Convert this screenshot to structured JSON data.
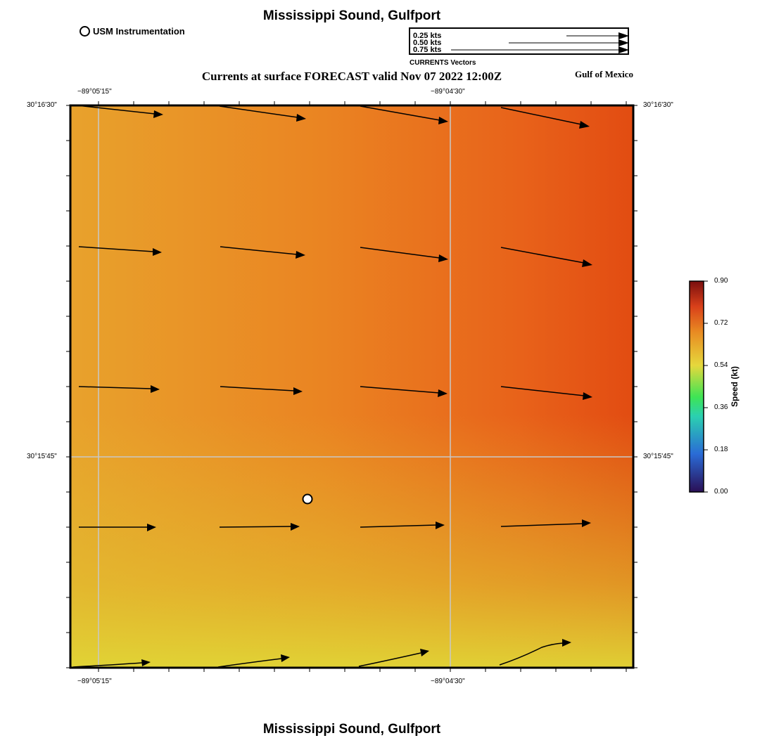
{
  "title": "Mississippi Sound, Gulfport",
  "subtitle": "Currents at surface FORECAST valid Nov 07 2022 12:00Z",
  "region_label": "Gulf of Mexico",
  "station_legend": {
    "label": "USM Instrumentation",
    "icon": "open-circle-icon"
  },
  "vector_legend": {
    "caption": "CURRENTS Vectors",
    "entries": [
      {
        "label": "0.25 kts",
        "speed_kt": 0.25
      },
      {
        "label": "0.50 kts",
        "speed_kt": 0.5
      },
      {
        "label": "0.75 kts",
        "speed_kt": 0.75
      }
    ]
  },
  "map": {
    "lon_labels": [
      "−89°05'15\"",
      "−89°04'30\""
    ],
    "lat_labels": [
      "30°16'30\"",
      "30°15'45\""
    ],
    "station_marker": {
      "name": "USM Instrumentation"
    },
    "colors": {
      "low": "#e0d334",
      "mid": "#e88a22",
      "high": "#e24f12",
      "grid": "#c8c8c8"
    }
  },
  "colorbar": {
    "label": "Speed (kt)",
    "ticks": [
      "0.90",
      "0.72",
      "0.54",
      "0.36",
      "0.18",
      "0.00"
    ],
    "range": [
      0,
      0.9
    ],
    "colors": [
      "#2a0f55",
      "#2a6bd6",
      "#2bd0b0",
      "#3ee455",
      "#e6d83c",
      "#e88a22",
      "#d9401a",
      "#7a0e0e"
    ]
  }
}
